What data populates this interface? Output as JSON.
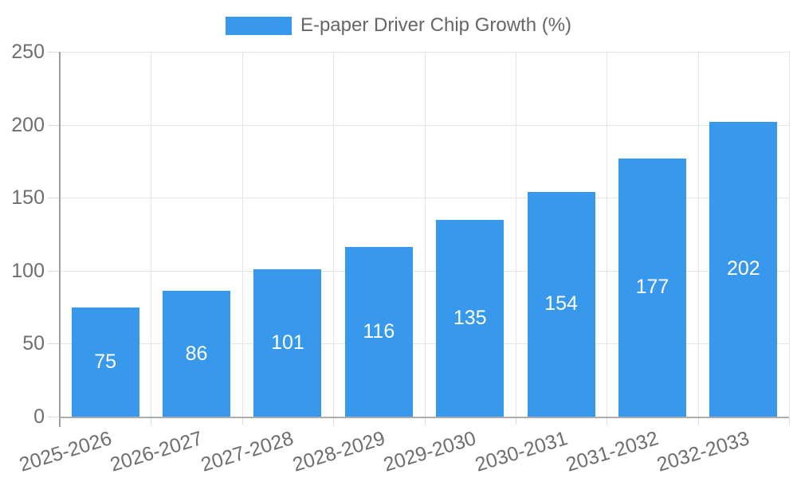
{
  "chart_data": {
    "type": "bar",
    "title": "E-paper Driver Chip Growth (%)",
    "categories": [
      "2025-2026",
      "2026-2027",
      "2027-2028",
      "2028-2029",
      "2029-2030",
      "2030-2031",
      "2031-2032",
      "2032-2033"
    ],
    "values": [
      75,
      86,
      101,
      116,
      135,
      154,
      177,
      202
    ],
    "xlabel": "",
    "ylabel": "",
    "ylim": [
      0,
      250
    ],
    "yticks": [
      0,
      50,
      100,
      150,
      200,
      250
    ],
    "grid": "both",
    "legend_position": "top-center",
    "value_labels": "inside-center",
    "x_label_rotation_deg": -17
  },
  "colors": {
    "bar": "#3899EC",
    "grid": "#E5E5E5",
    "tick": "#D9D9D9",
    "axis": "#9E9E9E",
    "axis-bottom": "#ADADAD",
    "axis-text": "#6E6E6E",
    "legend-text": "#666666",
    "value-text": "#FFFFFF",
    "background": "#FFFFFF"
  }
}
